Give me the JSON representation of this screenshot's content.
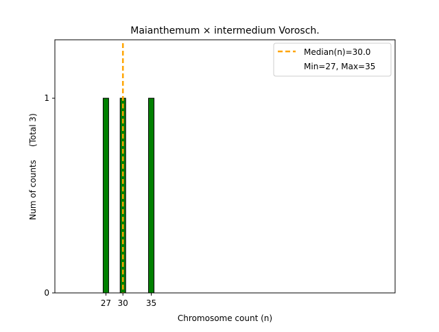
{
  "chart_data": {
    "type": "bar",
    "title": "Maianthemum × intermedium Vorosch.",
    "xlabel": "Chromosome count (n)",
    "ylabel": "Num of counts     (Total 3)",
    "x": [
      27,
      30,
      35
    ],
    "values": [
      1,
      1,
      1
    ],
    "xticks": [
      "27",
      "30",
      "35"
    ],
    "yticks": [
      "0",
      "1"
    ],
    "xlim": [
      18,
      78
    ],
    "ylim": [
      0,
      1.3
    ],
    "bar_color": "#008000",
    "bar_edge_color": "#000000",
    "median": 30.0,
    "median_color": "#ffa500",
    "legend": {
      "position": "top-right",
      "entries": [
        "Median(n)=30.0",
        "Min=27, Max=35"
      ]
    },
    "grid": false
  }
}
